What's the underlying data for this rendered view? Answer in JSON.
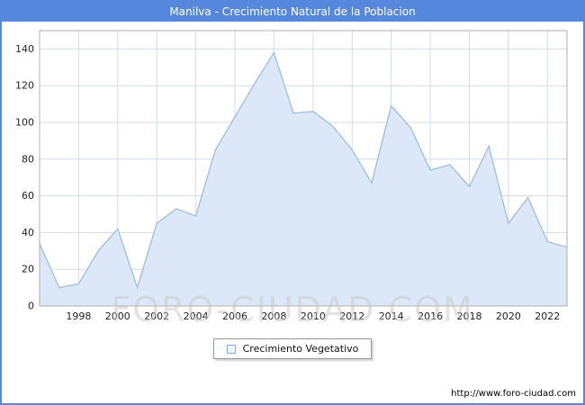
{
  "title": "Manilva - Crecimiento Natural de la Poblacion",
  "watermark": "FORO-CIUDAD.COM",
  "legend": {
    "label": "Crecimiento Vegetativo"
  },
  "footer": {
    "url": "http://www.foro-ciudad.com"
  },
  "colors": {
    "frame": "#5588dd",
    "titlebar": "#5588dd",
    "grid": "#d4dce8",
    "plot_border": "#b0b0b0",
    "area_fill": "#dce8f7",
    "line": "#a3c0de",
    "tick_text": "#222222",
    "watermark": "#c9c9c9"
  },
  "chart_data": {
    "type": "area",
    "title": "Manilva - Crecimiento Natural de la Poblacion",
    "xlabel": "",
    "ylabel": "",
    "x": [
      1996,
      1997,
      1998,
      1999,
      2000,
      2001,
      2002,
      2003,
      2004,
      2005,
      2006,
      2007,
      2008,
      2009,
      2010,
      2011,
      2012,
      2013,
      2014,
      2015,
      2016,
      2017,
      2018,
      2019,
      2020,
      2021,
      2022,
      2023
    ],
    "values": [
      34,
      10,
      12,
      30,
      42,
      10,
      45,
      53,
      49,
      85,
      103,
      121,
      138,
      105,
      106,
      98,
      85,
      67,
      109,
      97,
      74,
      77,
      65,
      87,
      45,
      59,
      35,
      32
    ],
    "series_name": "Crecimiento Vegetativo",
    "ylim": [
      0,
      150
    ],
    "yticks": [
      0,
      20,
      40,
      60,
      80,
      100,
      120,
      140
    ],
    "xticks": [
      1998,
      2000,
      2002,
      2004,
      2006,
      2008,
      2010,
      2012,
      2014,
      2016,
      2018,
      2020,
      2022
    ],
    "grid": true,
    "legend": [
      "Crecimiento Vegetativo"
    ],
    "legend_position": "bottom-center"
  }
}
